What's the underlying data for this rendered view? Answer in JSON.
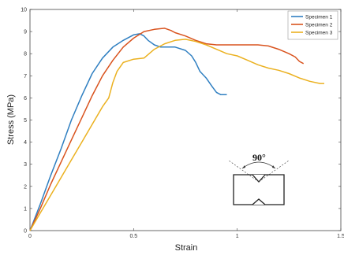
{
  "chart_data": {
    "type": "line",
    "xlabel": "Strain",
    "ylabel": "Stress (MPa)",
    "xlim": [
      0,
      1.5
    ],
    "ylim": [
      0,
      10
    ],
    "xticks": [
      "0",
      "0.5",
      "1",
      "1.5"
    ],
    "yticks": [
      "0",
      "1",
      "2",
      "3",
      "4",
      "5",
      "6",
      "7",
      "8",
      "9",
      "10"
    ],
    "grid": false,
    "legend_position": "top-right",
    "series": [
      {
        "name": "Specimen 1",
        "color": "#2f7fc1",
        "x": [
          0,
          0.05,
          0.1,
          0.15,
          0.2,
          0.25,
          0.3,
          0.35,
          0.4,
          0.45,
          0.5,
          0.53,
          0.55,
          0.57,
          0.6,
          0.63,
          0.65,
          0.7,
          0.75,
          0.78,
          0.8,
          0.82,
          0.85,
          0.88,
          0.9,
          0.92,
          0.95
        ],
        "y": [
          0,
          1.2,
          2.5,
          3.7,
          5.0,
          6.1,
          7.1,
          7.8,
          8.3,
          8.6,
          8.85,
          8.9,
          8.8,
          8.6,
          8.4,
          8.3,
          8.3,
          8.3,
          8.15,
          7.9,
          7.6,
          7.2,
          6.9,
          6.5,
          6.25,
          6.15,
          6.15
        ]
      },
      {
        "name": "Specimen 2",
        "color": "#d9531e",
        "x": [
          0,
          0.05,
          0.1,
          0.15,
          0.2,
          0.25,
          0.3,
          0.35,
          0.4,
          0.45,
          0.5,
          0.55,
          0.6,
          0.65,
          0.68,
          0.7,
          0.75,
          0.8,
          0.85,
          0.9,
          0.95,
          1.0,
          1.05,
          1.1,
          1.15,
          1.2,
          1.25,
          1.28,
          1.3,
          1.32
        ],
        "y": [
          0,
          1.0,
          2.1,
          3.1,
          4.1,
          5.1,
          6.1,
          7.0,
          7.7,
          8.3,
          8.7,
          9.0,
          9.1,
          9.15,
          9.05,
          8.95,
          8.8,
          8.6,
          8.45,
          8.4,
          8.4,
          8.4,
          8.4,
          8.4,
          8.35,
          8.2,
          8.0,
          7.85,
          7.65,
          7.55
        ]
      },
      {
        "name": "Specimen 3",
        "color": "#ebb120",
        "x": [
          0,
          0.05,
          0.1,
          0.15,
          0.2,
          0.25,
          0.3,
          0.35,
          0.38,
          0.4,
          0.42,
          0.45,
          0.5,
          0.55,
          0.6,
          0.65,
          0.7,
          0.75,
          0.8,
          0.85,
          0.9,
          0.95,
          1.0,
          1.05,
          1.1,
          1.15,
          1.2,
          1.25,
          1.3,
          1.35,
          1.4,
          1.42
        ],
        "y": [
          0,
          0.8,
          1.6,
          2.4,
          3.2,
          4.0,
          4.8,
          5.6,
          6.0,
          6.7,
          7.2,
          7.6,
          7.75,
          7.8,
          8.2,
          8.45,
          8.6,
          8.65,
          8.55,
          8.4,
          8.2,
          8.0,
          7.9,
          7.7,
          7.5,
          7.35,
          7.25,
          7.1,
          6.9,
          6.75,
          6.65,
          6.65
        ]
      }
    ],
    "annotation": {
      "angle_label": "90°",
      "figure": "notched-specimen"
    }
  }
}
